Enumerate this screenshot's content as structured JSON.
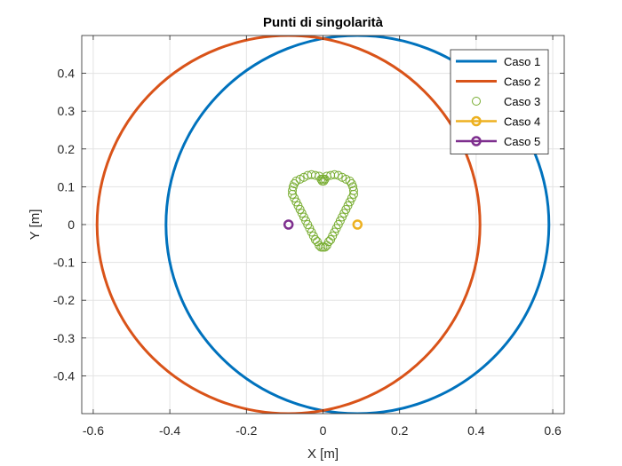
{
  "chart_data": {
    "type": "scatter",
    "title": "Punti di singolarità",
    "xlabel": "X [m]",
    "ylabel": "Y [m]",
    "xlim": [
      -0.63,
      0.63
    ],
    "ylim": [
      -0.5,
      0.5
    ],
    "xticks": [
      -0.6,
      -0.4,
      -0.2,
      0,
      0.2,
      0.4,
      0.6
    ],
    "yticks": [
      -0.4,
      -0.3,
      -0.2,
      -0.1,
      0,
      0.1,
      0.2,
      0.3,
      0.4
    ],
    "grid": true,
    "legend_position": "top-right",
    "series": [
      {
        "name": "Caso 1",
        "kind": "circle-line",
        "color": "#0072BD",
        "center": [
          0.09,
          0
        ],
        "radius": 0.5
      },
      {
        "name": "Caso 2",
        "kind": "circle-line",
        "color": "#D95319",
        "center": [
          -0.09,
          0
        ],
        "radius": 0.5
      },
      {
        "name": "Caso 3",
        "kind": "markers",
        "color": "#77AC30",
        "points": [
          [
            0,
            -0.06
          ],
          [
            0.005,
            -0.06
          ],
          [
            0.01,
            -0.055
          ],
          [
            0.015,
            -0.045
          ],
          [
            0.02,
            -0.04
          ],
          [
            0.025,
            -0.03
          ],
          [
            0.03,
            -0.02
          ],
          [
            0.035,
            -0.01
          ],
          [
            0.04,
            0
          ],
          [
            0.045,
            0.01
          ],
          [
            0.05,
            0.02
          ],
          [
            0.055,
            0.03
          ],
          [
            0.06,
            0.04
          ],
          [
            0.065,
            0.05
          ],
          [
            0.07,
            0.06
          ],
          [
            0.075,
            0.07
          ],
          [
            0.08,
            0.08
          ],
          [
            0.08,
            0.09
          ],
          [
            0.078,
            0.1
          ],
          [
            0.075,
            0.108
          ],
          [
            0.07,
            0.115
          ],
          [
            0.06,
            0.12
          ],
          [
            0.05,
            0.125
          ],
          [
            0.04,
            0.13
          ],
          [
            0.03,
            0.132
          ],
          [
            0.02,
            0.13
          ],
          [
            0.01,
            0.128
          ],
          [
            0.005,
            0.12
          ],
          [
            0.002,
            0.115
          ],
          [
            -0.005,
            -0.06
          ],
          [
            -0.01,
            -0.055
          ],
          [
            -0.015,
            -0.045
          ],
          [
            -0.02,
            -0.04
          ],
          [
            -0.025,
            -0.03
          ],
          [
            -0.03,
            -0.02
          ],
          [
            -0.035,
            -0.01
          ],
          [
            -0.04,
            0
          ],
          [
            -0.045,
            0.01
          ],
          [
            -0.05,
            0.02
          ],
          [
            -0.055,
            0.03
          ],
          [
            -0.06,
            0.04
          ],
          [
            -0.065,
            0.05
          ],
          [
            -0.07,
            0.06
          ],
          [
            -0.075,
            0.07
          ],
          [
            -0.08,
            0.08
          ],
          [
            -0.08,
            0.09
          ],
          [
            -0.078,
            0.1
          ],
          [
            -0.075,
            0.108
          ],
          [
            -0.07,
            0.115
          ],
          [
            -0.06,
            0.12
          ],
          [
            -0.05,
            0.125
          ],
          [
            -0.04,
            0.13
          ],
          [
            -0.03,
            0.132
          ],
          [
            -0.02,
            0.13
          ],
          [
            -0.01,
            0.128
          ],
          [
            -0.005,
            0.12
          ],
          [
            -0.002,
            0.115
          ],
          [
            0,
            0.12
          ]
        ]
      },
      {
        "name": "Caso 4",
        "kind": "marker-line",
        "color": "#EDB120",
        "points": [
          [
            0.09,
            0
          ]
        ]
      },
      {
        "name": "Caso 5",
        "kind": "marker-line",
        "color": "#7E2F8E",
        "points": [
          [
            -0.09,
            0
          ]
        ]
      }
    ]
  }
}
